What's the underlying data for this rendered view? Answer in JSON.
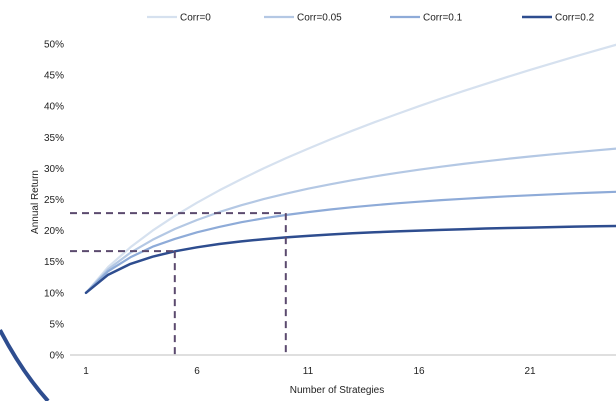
{
  "chart_data": {
    "type": "line",
    "xlabel": "Number of Strategies",
    "ylabel": "Annual Return",
    "xlim": [
      1,
      25
    ],
    "ylim": [
      0,
      0.5
    ],
    "xticks": [
      1,
      6,
      11,
      16,
      21
    ],
    "xtick_labels": [
      "1",
      "6",
      "11",
      "16",
      "21"
    ],
    "yticks": [
      0,
      0.05,
      0.1,
      0.15,
      0.2,
      0.25,
      0.3,
      0.35,
      0.4,
      0.45,
      0.5
    ],
    "ytick_labels": [
      "0%",
      "5%",
      "10%",
      "15%",
      "20%",
      "25%",
      "30%",
      "35%",
      "40%",
      "45%",
      "50%"
    ],
    "x": [
      1,
      2,
      3,
      4,
      5,
      6,
      7,
      8,
      9,
      10,
      11,
      12,
      13,
      14,
      15,
      16,
      17,
      18,
      19,
      20,
      21,
      22,
      23,
      24,
      25
    ],
    "legend_position": "top",
    "grid": false,
    "series": [
      {
        "name": "Corr=0",
        "color": "#d6e1ef",
        "values": [
          0.1,
          0.1414,
          0.1732,
          0.2,
          0.2236,
          0.2449,
          0.2646,
          0.2828,
          0.3,
          0.3162,
          0.3317,
          0.3464,
          0.3606,
          0.3742,
          0.3873,
          0.4,
          0.4123,
          0.4243,
          0.4359,
          0.4472,
          0.4583,
          0.469,
          0.4796,
          0.4899,
          0.5
        ]
      },
      {
        "name": "Corr=0.05",
        "color": "#b4c8e4",
        "values": [
          0.1,
          0.1379,
          0.1644,
          0.1852,
          0.2025,
          0.2171,
          0.2297,
          0.2408,
          0.2507,
          0.2594,
          0.2673,
          0.2745,
          0.2811,
          0.2872,
          0.2928,
          0.2979,
          0.3027,
          0.3072,
          0.3114,
          0.3154,
          0.3191,
          0.3226,
          0.3259,
          0.3291,
          0.3321
        ]
      },
      {
        "name": "Corr=0.1",
        "color": "#8eabd8",
        "values": [
          0.1,
          0.1348,
          0.1571,
          0.1741,
          0.1867,
          0.1972,
          0.206,
          0.2135,
          0.2197,
          0.225,
          0.2298,
          0.2339,
          0.2376,
          0.2409,
          0.2439,
          0.2465,
          0.249,
          0.2512,
          0.2532,
          0.2551,
          0.2568,
          0.2584,
          0.2599,
          0.2613,
          0.2626
        ]
      },
      {
        "name": "Corr=0.2",
        "color": "#2e4d8f",
        "values": [
          0.1,
          0.1291,
          0.1464,
          0.1581,
          0.1667,
          0.1732,
          0.1784,
          0.1826,
          0.1861,
          0.189,
          0.1915,
          0.1937,
          0.1956,
          0.1972,
          0.1987,
          0.2,
          0.2012,
          0.2023,
          0.2033,
          0.2041,
          0.2049,
          0.2057,
          0.2064,
          0.207,
          0.2076
        ]
      }
    ],
    "annotations": [
      {
        "type": "dashed-guide",
        "x": 5,
        "y": 0.167,
        "color": "#5b4a6e"
      },
      {
        "type": "dashed-guide",
        "x": 10,
        "y": 0.228,
        "color": "#5b4a6e"
      }
    ]
  },
  "decor": {
    "arc_color": "#2e4d8f"
  }
}
